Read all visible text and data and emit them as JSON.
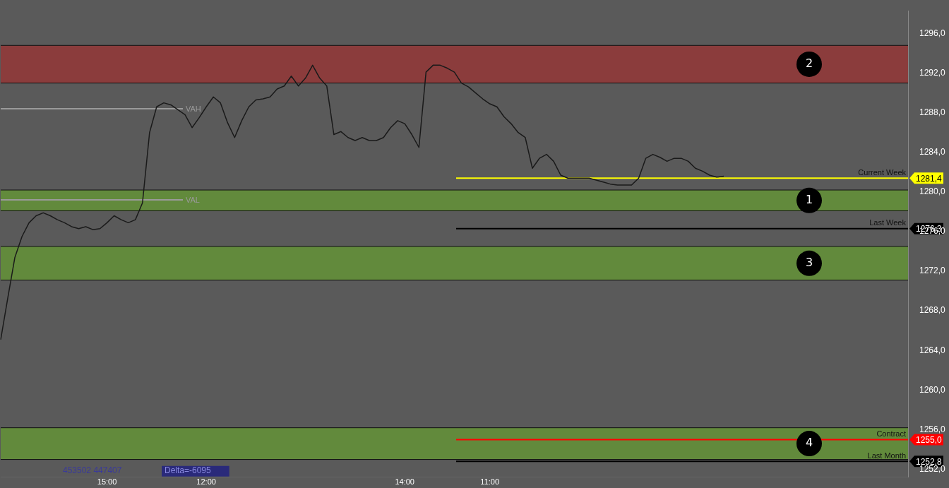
{
  "chart_data": {
    "type": "line",
    "categories": [
      null,
      null,
      null,
      null,
      null,
      null,
      null,
      null,
      null,
      null,
      null,
      null,
      null,
      null,
      null,
      "15:00",
      null,
      null,
      null,
      null,
      null,
      null,
      null,
      null,
      null,
      null,
      null,
      null,
      null,
      "12:00",
      null,
      null,
      null,
      null,
      null,
      null,
      null,
      null,
      null,
      null,
      null,
      null,
      null,
      null,
      null,
      null,
      null,
      null,
      null,
      null,
      null,
      null,
      null,
      null,
      null,
      null,
      null,
      "14:00",
      null,
      null,
      null,
      null,
      null,
      null,
      null,
      null,
      null,
      null,
      null,
      "11:00",
      null,
      null,
      null,
      null,
      null,
      null,
      null,
      null,
      null,
      null,
      null,
      null,
      null,
      null,
      null,
      null,
      null,
      null,
      null,
      null,
      null,
      null,
      null,
      null,
      null,
      null,
      null,
      null,
      null,
      null,
      null,
      null,
      null,
      null,
      null,
      null,
      null,
      null,
      null,
      null,
      null,
      null,
      null,
      null,
      null,
      null,
      null,
      null,
      null,
      null,
      null,
      null,
      null,
      null,
      null,
      null,
      null,
      null,
      null
    ],
    "series": [
      {
        "color": "#1a1a1a",
        "values": [
          1265.1,
          1269.3,
          1273.4,
          1275.5,
          1276.9,
          1277.6,
          1277.9,
          1277.6,
          1277.2,
          1276.9,
          1276.5,
          1276.3,
          1276.5,
          1276.2,
          1276.3,
          1276.9,
          1277.6,
          1277.2,
          1276.9,
          1277.2,
          1278.9,
          1286.0,
          1288.6,
          1289.0,
          1288.8,
          1288.3,
          1287.8,
          1286.5,
          1287.5,
          1288.6,
          1289.6,
          1289.0,
          1287.0,
          1285.5,
          1287.2,
          1288.6,
          1289.3,
          1289.4,
          1289.6,
          1290.4,
          1290.7,
          1291.7,
          1290.7,
          1291.5,
          1292.8,
          1291.5,
          1290.7,
          1285.8,
          1286.1,
          1285.5,
          1285.2,
          1285.5,
          1285.2,
          1285.2,
          1285.5,
          1286.5,
          1287.2,
          1286.9,
          1285.8,
          1284.5,
          1292.1,
          1292.8,
          1292.8,
          1292.5,
          1292.1,
          1291.0,
          1290.6,
          1290.0,
          1289.4,
          1288.9,
          1288.6,
          1287.6,
          1286.9,
          1286.0,
          1285.5,
          1282.4,
          1283.4,
          1283.8,
          1283.1,
          1281.7,
          1281.4,
          1281.4,
          1281.4,
          1281.4,
          1281.2,
          1281.0,
          1280.8,
          1280.7,
          1280.7,
          1280.7,
          1281.4,
          1283.4,
          1283.8,
          1283.5,
          1283.1,
          1283.4,
          1283.4,
          1283.1,
          1282.4,
          1282.1,
          1281.7,
          1281.5,
          1281.6,
          null,
          null,
          null,
          null,
          null,
          null,
          null,
          null,
          null,
          null,
          null,
          null,
          null,
          null,
          null,
          null,
          null,
          null,
          null,
          null,
          null,
          null,
          null,
          null,
          null,
          null
        ]
      }
    ],
    "ylim": [
      1251.2,
      1298.3
    ],
    "yticks": [
      {
        "value": 1252,
        "label": "1252,0"
      },
      {
        "value": 1256,
        "label": "1256,0"
      },
      {
        "value": 1260,
        "label": "1260,0"
      },
      {
        "value": 1264,
        "label": "1264,0"
      },
      {
        "value": 1268,
        "label": "1268,0"
      },
      {
        "value": 1272,
        "label": "1272,0"
      },
      {
        "value": 1276,
        "label": "1276,0"
      },
      {
        "value": 1280,
        "label": "1280,0"
      },
      {
        "value": 1284,
        "label": "1284,0"
      },
      {
        "value": 1288,
        "label": "1288,0"
      },
      {
        "value": 1292,
        "label": "1292,0"
      },
      {
        "value": 1296,
        "label": "1296,0"
      }
    ],
    "bands": [
      {
        "axis": "y",
        "from": 1291.0,
        "to": 1294.8,
        "label": "2",
        "color": "#8b3c3c"
      },
      {
        "axis": "y",
        "from": 1278.1,
        "to": 1280.2,
        "label": "1",
        "color": "#628a3c"
      },
      {
        "axis": "y",
        "from": 1271.1,
        "to": 1274.5,
        "label": "3",
        "color": "#628a3c"
      },
      {
        "axis": "y",
        "from": 1253.0,
        "to": 1256.2,
        "label": "4",
        "color": "#628a3c"
      }
    ],
    "ref_lines": [
      {
        "axis": "y",
        "value": 1281.4,
        "label": "Current Week",
        "color": "#ffff00"
      },
      {
        "axis": "y",
        "value": 1276.3,
        "label": "Last Week",
        "color": "#000000"
      },
      {
        "axis": "y",
        "value": 1255.0,
        "label": "Contract",
        "color": "#ff0000"
      },
      {
        "axis": "y",
        "value": 1252.8,
        "label": "Last Month",
        "color": "#000000"
      },
      {
        "axis": "y",
        "value": 1288.4,
        "label": "VAH",
        "color": "#9a9a9a"
      },
      {
        "axis": "y",
        "value": 1279.2,
        "label": "VAL",
        "color": "#9a9a9a"
      }
    ],
    "annotations": [
      "453502 447407",
      "Delta=-6095",
      "1281,4",
      "1276,3",
      "1255,0",
      "1252,8"
    ],
    "grid": false,
    "legend": false,
    "marker": "none",
    "line_style": "solid"
  }
}
